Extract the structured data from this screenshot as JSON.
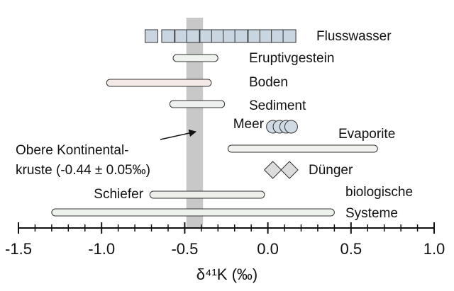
{
  "chart_data": {
    "type": "range",
    "xlabel": "δ⁴¹K (‰)",
    "xlim": [
      -1.5,
      1.0
    ],
    "xticks": [
      -1.5,
      {
        "value": -1.0,
        "label": "-1.0"
      },
      -0.5,
      {
        "value": 0.0,
        "label": "0.0"
      },
      0.5,
      {
        "value": 1.0,
        "label": "1.0"
      }
    ],
    "xminorticks": [
      -1.4,
      -1.3,
      -1.2,
      -1.1,
      -0.9,
      -0.8,
      -0.7,
      -0.6,
      -0.4,
      -0.3,
      -0.2,
      -0.1,
      0.1,
      0.2,
      0.3,
      0.4,
      0.6,
      0.7,
      0.8,
      0.9
    ],
    "band": {
      "center": -0.44,
      "error": 0.05,
      "color": "#c8c8c8",
      "label": [
        "Obere Kontinental-",
        "kruste (-0.44 ± 0.05‰)"
      ]
    },
    "series": [
      {
        "name": [
          "Flusswasser"
        ],
        "kind": "squares",
        "color": "#c9d5e1",
        "values": [
          -0.7,
          -0.6,
          -0.52,
          -0.45,
          -0.37,
          -0.3,
          -0.23,
          -0.16,
          -0.08,
          -0.01,
          0.06,
          0.13
        ]
      },
      {
        "name": [
          "Eruptivgestein"
        ],
        "kind": "range",
        "color": "#eef3ee",
        "low": -0.57,
        "high": -0.3
      },
      {
        "name": [
          "Boden"
        ],
        "kind": "range",
        "color": "#f4e9e5",
        "low": -0.97,
        "high": -0.34
      },
      {
        "name": [
          "Sediment"
        ],
        "kind": "range",
        "color": "#eef0f0",
        "low": -0.59,
        "high": -0.26
      },
      {
        "name": [
          "Meer"
        ],
        "kind": "circles",
        "color": "#d0dae4",
        "values": [
          0.03,
          0.07,
          0.11,
          0.14
        ]
      },
      {
        "name": [
          "Evaporite"
        ],
        "kind": "range",
        "color": "#f1f1ee",
        "low": -0.24,
        "high": 0.66
      },
      {
        "name": [
          "Dünger"
        ],
        "kind": "diamonds",
        "color": "#dcdcdc",
        "values": [
          0.03,
          0.13
        ]
      },
      {
        "name": [
          "Schiefer"
        ],
        "kind": "range",
        "color": "#eeeeea",
        "low": -0.71,
        "high": -0.02
      },
      {
        "name": [
          "biologische",
          "Systeme"
        ],
        "kind": "range",
        "color": "#eef2ec",
        "low": -1.3,
        "high": 0.4
      }
    ]
  }
}
